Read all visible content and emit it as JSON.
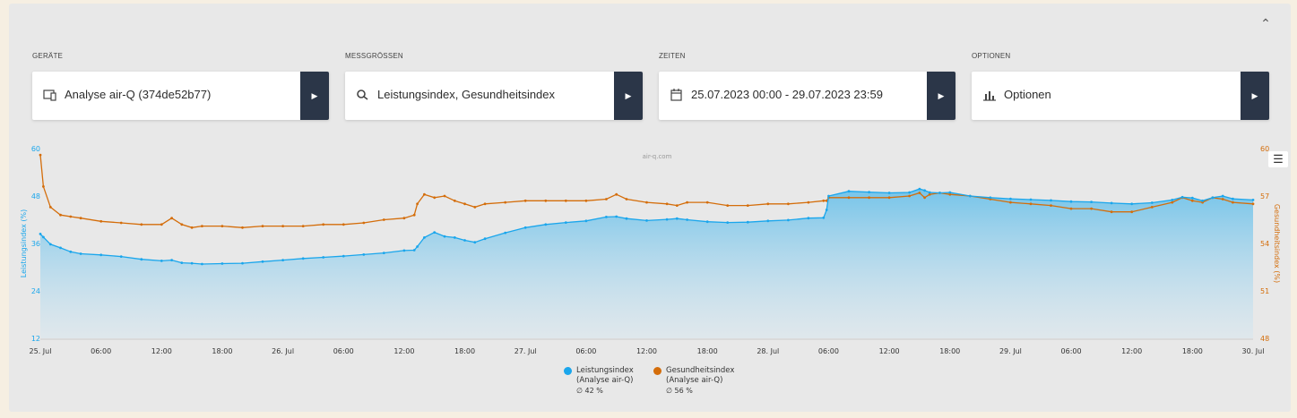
{
  "panel": {
    "collapse_icon": "chevron-up-icon"
  },
  "sections": [
    {
      "label": "GERÄTE",
      "value": "Analyse air-Q (374de52b77)",
      "icon": "device-icon"
    },
    {
      "label": "MESSGRÖSSEN",
      "value": "Leistungsindex, Gesundheitsindex",
      "icon": "search-icon"
    },
    {
      "label": "ZEITEN",
      "value": "25.07.2023 00:00 - 29.07.2023 23:59",
      "icon": "calendar-icon"
    },
    {
      "label": "OPTIONEN",
      "value": "Optionen",
      "icon": "bar-chart-icon"
    }
  ],
  "colors": {
    "blue": "#1aa6ec",
    "orange": "#d46d0a",
    "arrow_bg": "#2b3648"
  },
  "chart_data": {
    "type": "line",
    "credit": "air-q.com",
    "x_start": "2023-07-25 00:00",
    "x_end": "2023-07-30 00:00",
    "x_ticks": [
      "25. Jul",
      "06:00",
      "12:00",
      "18:00",
      "26. Jul",
      "06:00",
      "12:00",
      "18:00",
      "27. Jul",
      "06:00",
      "12:00",
      "18:00",
      "28. Jul",
      "06:00",
      "12:00",
      "18:00",
      "29. Jul",
      "06:00",
      "12:00",
      "18:00",
      "30. Jul"
    ],
    "y_left": {
      "label": "Leistungsindex (%)",
      "ticks": [
        12,
        24,
        36,
        48,
        60
      ],
      "range": [
        12,
        60
      ]
    },
    "y_right": {
      "label": "Gesundheitsindex (%)",
      "ticks": [
        48,
        51,
        54,
        57,
        60
      ],
      "range": [
        48,
        60
      ]
    },
    "hours": [
      0,
      0.3,
      1,
      2,
      3,
      4,
      6,
      8,
      10,
      12,
      13,
      14,
      15,
      16,
      18,
      20,
      22,
      24,
      26,
      28,
      30,
      32,
      34,
      36,
      37,
      37.3,
      38,
      39,
      40,
      41,
      42,
      43,
      44,
      46,
      48,
      50,
      52,
      54,
      56,
      57,
      58,
      60,
      62,
      63,
      64,
      66,
      68,
      70,
      72,
      74,
      76,
      77.5,
      77.8,
      78,
      80,
      82,
      84,
      86,
      87,
      87.5,
      88,
      89,
      90,
      92,
      94,
      96,
      98,
      100,
      102,
      104,
      106,
      108,
      110,
      112,
      113,
      114,
      115,
      116,
      117,
      118,
      120
    ],
    "series": [
      {
        "name": "Leistungsindex",
        "axis": "left",
        "values": [
          38.4,
          37.6,
          35.8,
          34.9,
          33.9,
          33.4,
          33.1,
          32.7,
          32.0,
          31.6,
          31.8,
          31.1,
          31.0,
          30.8,
          30.9,
          31.0,
          31.4,
          31.8,
          32.2,
          32.5,
          32.8,
          33.2,
          33.6,
          34.2,
          34.3,
          35.2,
          37.5,
          38.8,
          37.8,
          37.5,
          36.8,
          36.3,
          37.2,
          38.7,
          40.0,
          40.8,
          41.3,
          41.7,
          42.7,
          42.8,
          42.3,
          41.8,
          42.1,
          42.3,
          42.0,
          41.5,
          41.3,
          41.4,
          41.7,
          41.9,
          42.4,
          42.5,
          44.5,
          48.0,
          49.2,
          49.0,
          48.8,
          48.9,
          49.8,
          49.4,
          48.9,
          48.8,
          48.9,
          48.0,
          47.6,
          47.3,
          47.1,
          46.9,
          46.6,
          46.5,
          46.2,
          46.0,
          46.3,
          47.0,
          47.7,
          47.5,
          46.8,
          47.6,
          48.0,
          47.3,
          47.0
        ]
      },
      {
        "name": "Gesundheitsindex",
        "axis": "right",
        "values": [
          59.6,
          57.6,
          56.3,
          55.8,
          55.7,
          55.6,
          55.4,
          55.3,
          55.2,
          55.2,
          55.6,
          55.2,
          55.0,
          55.1,
          55.1,
          55.0,
          55.1,
          55.1,
          55.1,
          55.2,
          55.2,
          55.3,
          55.5,
          55.6,
          55.8,
          56.5,
          57.1,
          56.9,
          57.0,
          56.7,
          56.5,
          56.3,
          56.5,
          56.6,
          56.7,
          56.7,
          56.7,
          56.7,
          56.8,
          57.1,
          56.8,
          56.6,
          56.5,
          56.4,
          56.6,
          56.6,
          56.4,
          56.4,
          56.5,
          56.5,
          56.6,
          56.7,
          56.7,
          56.9,
          56.9,
          56.9,
          56.9,
          57.0,
          57.2,
          56.9,
          57.1,
          57.2,
          57.1,
          57.0,
          56.8,
          56.6,
          56.5,
          56.4,
          56.2,
          56.2,
          56.0,
          56.0,
          56.3,
          56.6,
          56.9,
          56.7,
          56.6,
          56.9,
          56.8,
          56.6,
          56.5
        ]
      }
    ],
    "legend": [
      {
        "name": "Leistungsindex",
        "device": "(Analyse air-Q)",
        "avg": "∅ 42 %"
      },
      {
        "name": "Gesundheitsindex",
        "device": "(Analyse air-Q)",
        "avg": "∅ 56 %"
      }
    ],
    "menu_icon": "hamburger-menu-icon"
  }
}
